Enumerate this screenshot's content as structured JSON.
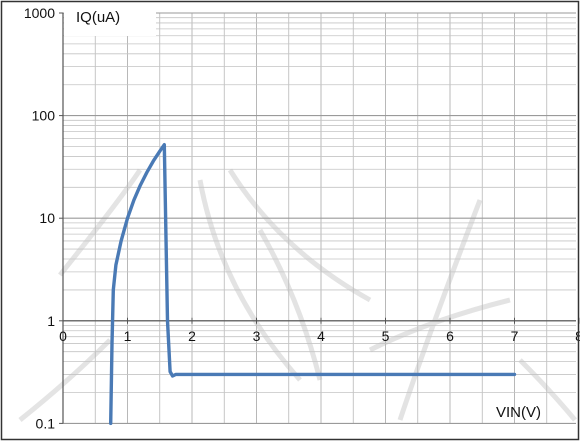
{
  "chart_data": {
    "type": "line",
    "ylabel": "IQ(uA)",
    "xlabel": "VIN(V)",
    "y_scale": "log",
    "ylim": [
      0.1,
      1000
    ],
    "xlim": [
      0,
      8
    ],
    "x_ticks": [
      "0",
      "1",
      "2",
      "3",
      "4",
      "5",
      "6",
      "7",
      "8"
    ],
    "y_ticks": [
      "0.1",
      "1",
      "10",
      "100",
      "1000"
    ],
    "grid": true,
    "series": [
      {
        "color": "#4a7ab5",
        "points": [
          [
            0.74,
            0.1
          ],
          [
            0.76,
            0.6
          ],
          [
            0.78,
            2.0
          ],
          [
            0.82,
            3.5
          ],
          [
            0.9,
            6.0
          ],
          [
            1.0,
            10.0
          ],
          [
            1.1,
            15.0
          ],
          [
            1.2,
            21.0
          ],
          [
            1.3,
            28.0
          ],
          [
            1.4,
            36.0
          ],
          [
            1.5,
            45.0
          ],
          [
            1.57,
            52.0
          ],
          [
            1.62,
            1.0
          ],
          [
            1.66,
            0.32
          ],
          [
            1.7,
            0.29
          ],
          [
            1.75,
            0.3
          ],
          [
            1.9,
            0.3
          ],
          [
            3.0,
            0.3
          ],
          [
            5.0,
            0.3
          ],
          [
            7.0,
            0.3
          ]
        ]
      }
    ]
  },
  "watermark": {
    "description": "faint diagonal gray characters across chart"
  }
}
